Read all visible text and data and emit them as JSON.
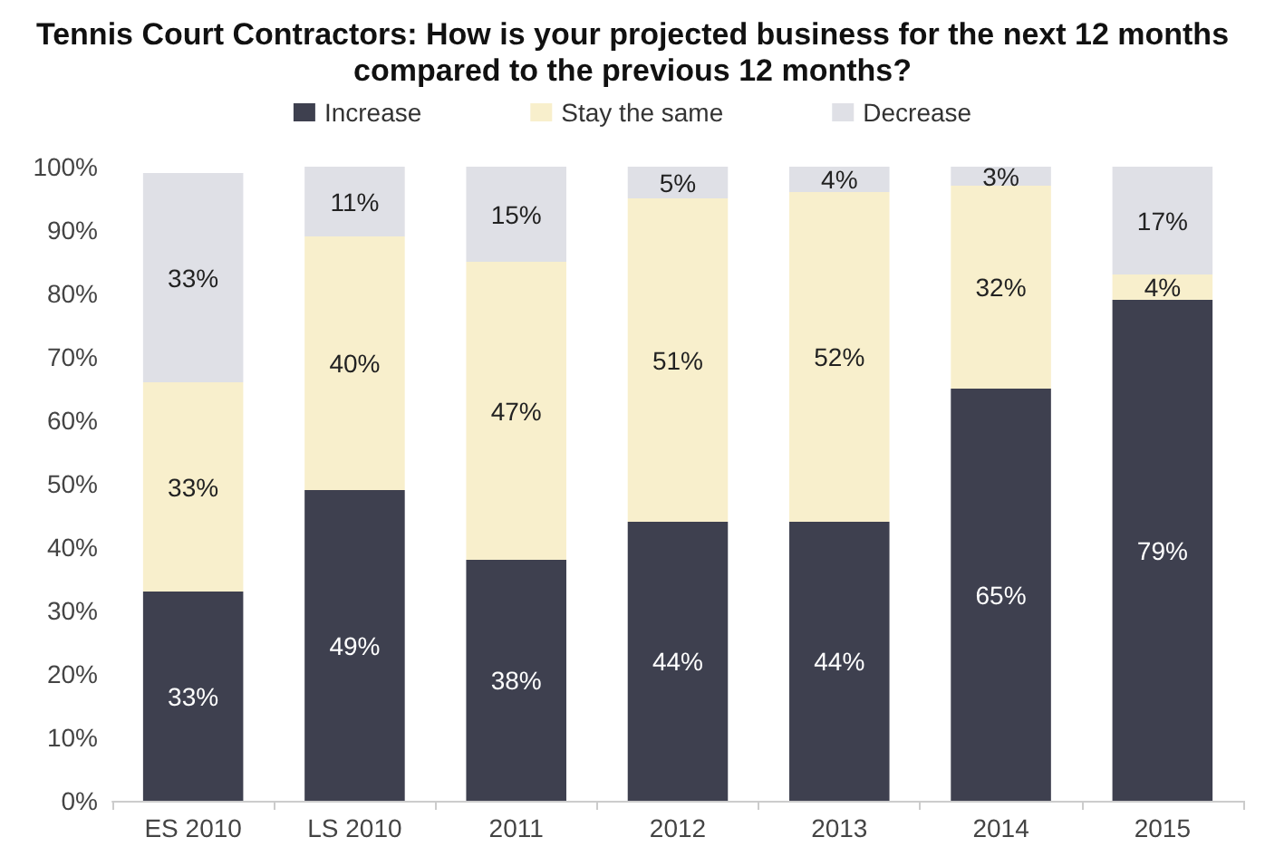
{
  "chart_data": {
    "type": "bar",
    "title": "Tennis Court Contractors: How is your projected business for the next 12 months\ncompared to the previous 12 months?",
    "categories": [
      "ES 2010",
      "LS 2010",
      "2011",
      "2012",
      "2013",
      "2014",
      "2015"
    ],
    "stacked": true,
    "legend": "top",
    "ylim": [
      0,
      100
    ],
    "yticks": [
      {
        "value": 0,
        "label": "0%"
      },
      {
        "value": 10,
        "label": "10%"
      },
      {
        "value": 20,
        "label": "20%"
      },
      {
        "value": 30,
        "label": "30%"
      },
      {
        "value": 40,
        "label": "40%"
      },
      {
        "value": 50,
        "label": "50%"
      },
      {
        "value": 60,
        "label": "60%"
      },
      {
        "value": 70,
        "label": "70%"
      },
      {
        "value": 80,
        "label": "80%"
      },
      {
        "value": 90,
        "label": "90%"
      },
      {
        "value": 100,
        "label": "100%"
      }
    ],
    "series": [
      {
        "name": "Increase",
        "color": "#3e404f",
        "values": [
          33,
          49,
          38,
          44,
          44,
          65,
          79
        ],
        "value_labels": [
          "33%",
          "49%",
          "38%",
          "44%",
          "44%",
          "65%",
          "79%"
        ]
      },
      {
        "name": "Stay the same",
        "color": "#f8efcc",
        "values": [
          33,
          40,
          47,
          51,
          52,
          32,
          4
        ],
        "value_labels": [
          "33%",
          "40%",
          "47%",
          "51%",
          "52%",
          "32%",
          "4%"
        ]
      },
      {
        "name": "Decrease",
        "color": "#dfe0e6",
        "values": [
          33,
          11,
          15,
          5,
          4,
          3,
          17
        ],
        "value_labels": [
          "33%",
          "11%",
          "15%",
          "5%",
          "4%",
          "3%",
          "17%"
        ]
      }
    ]
  }
}
